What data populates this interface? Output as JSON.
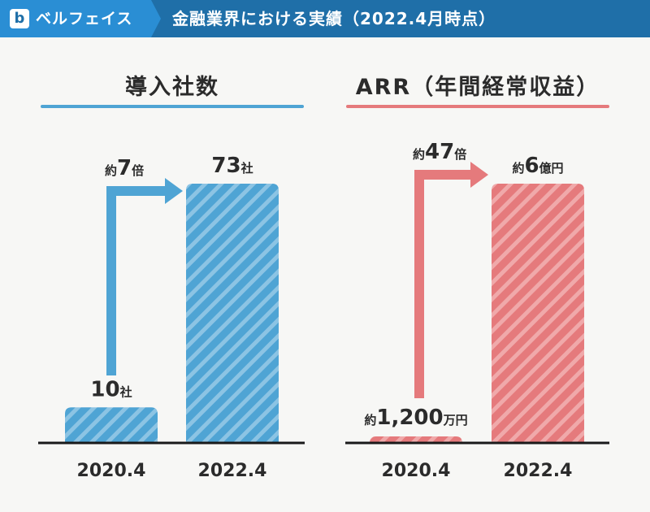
{
  "header": {
    "logo_letter": "b",
    "brand": "ベルフェイス",
    "title": "金融業界における実績（2022.4月時点）"
  },
  "colors": {
    "header_bg": "#1f6fa8",
    "blue": "#4fa4d4",
    "blue_stripe": "#8cc4e4",
    "red": "#e57a7c",
    "red_stripe": "#f0a9aa",
    "axis": "#1a1a1a",
    "text": "#2b2b2b"
  },
  "chart_data": [
    {
      "type": "bar",
      "title": "導入社数",
      "categories": [
        "2020.4",
        "2022.4"
      ],
      "values": [
        10,
        73
      ],
      "unit": "社",
      "data_labels": [
        {
          "main": "10",
          "suffix": "社"
        },
        {
          "main": "73",
          "suffix": "社"
        }
      ],
      "growth": {
        "prefix": "約",
        "value": "7",
        "suffix": "倍"
      }
    },
    {
      "type": "bar",
      "title": "ARR（年間経常収益）",
      "categories": [
        "2020.4",
        "2022.4"
      ],
      "values": [
        12000000,
        600000000
      ],
      "unit": "円",
      "data_labels": [
        {
          "prefix": "約",
          "main": "1,200",
          "suffix": "万円"
        },
        {
          "prefix": "約",
          "main": "6",
          "suffix": "億円"
        }
      ],
      "growth": {
        "prefix": "約",
        "value": "47",
        "suffix": "倍"
      }
    }
  ]
}
